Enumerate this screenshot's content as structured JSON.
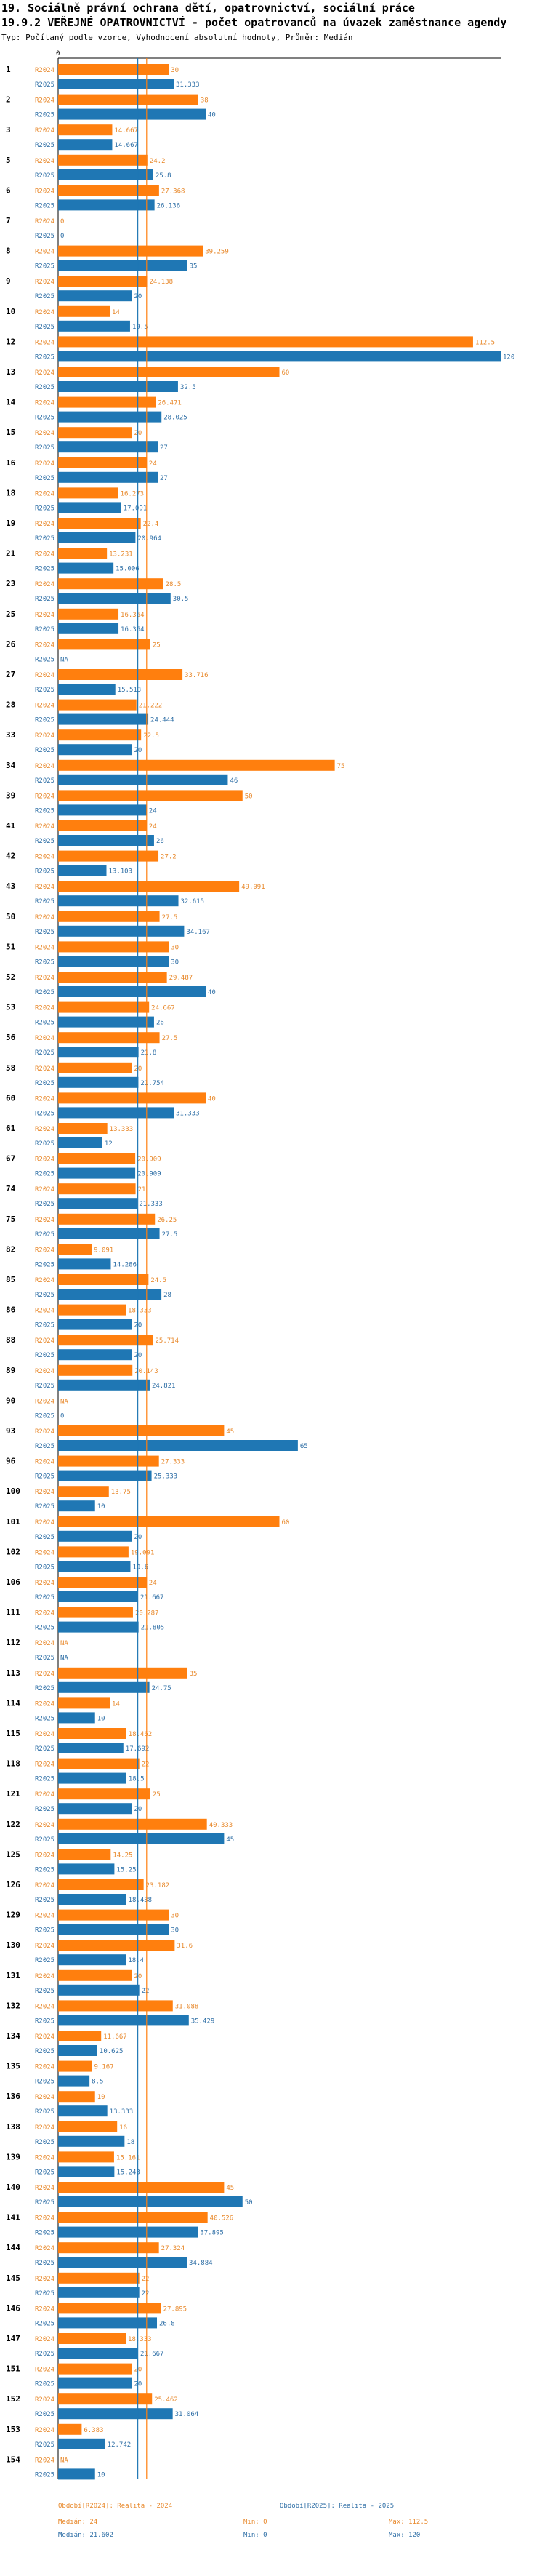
{
  "header": {
    "title1": "19. Sociálně právní ochrana dětí, opatrovnictví, sociální práce",
    "title2": "19.9.2 VEŘEJNÉ OPATROVNICTVÍ - počet opatrovanců na úvazek zaměstnance agendy",
    "subtitle": "Typ: Počítaný podle vzorce, Vyhodnocení absolutní hodnoty, Průměr: Medián"
  },
  "colors": {
    "r2024": "#ff7f0e",
    "r2025": "#1f77b4",
    "r2024_text": "#e8892c",
    "r2025_text": "#2f6fa6"
  },
  "chart_data": {
    "type": "bar",
    "orientation": "horizontal",
    "x_range": [
      0,
      120
    ],
    "series": [
      {
        "key": "r2024",
        "name": "R2024"
      },
      {
        "key": "r2025",
        "name": "R2025"
      }
    ],
    "median_lines": [
      24,
      21.602
    ],
    "rows": [
      {
        "id": "1",
        "r2024": {
          "v": 30,
          "t": "30"
        },
        "r2025": {
          "v": 31.333,
          "t": "31.333"
        }
      },
      {
        "id": "2",
        "r2024": {
          "v": 38,
          "t": "38"
        },
        "r2025": {
          "v": 40,
          "t": "40"
        }
      },
      {
        "id": "3",
        "r2024": {
          "v": 14.667,
          "t": "14.667"
        },
        "r2025": {
          "v": 14.667,
          "t": "14.667"
        }
      },
      {
        "id": "5",
        "r2024": {
          "v": 24.2,
          "t": "24.2"
        },
        "r2025": {
          "v": 25.8,
          "t": "25.8"
        }
      },
      {
        "id": "6",
        "r2024": {
          "v": 27.368,
          "t": "27.368"
        },
        "r2025": {
          "v": 26.136,
          "t": "26.136"
        }
      },
      {
        "id": "7",
        "r2024": {
          "v": 0,
          "t": "0"
        },
        "r2025": {
          "v": 0,
          "t": "0"
        }
      },
      {
        "id": "8",
        "r2024": {
          "v": 39.259,
          "t": "39.259"
        },
        "r2025": {
          "v": 35,
          "t": "35"
        }
      },
      {
        "id": "9",
        "r2024": {
          "v": 24.138,
          "t": "24.138"
        },
        "r2025": {
          "v": 20,
          "t": "20"
        }
      },
      {
        "id": "10",
        "r2024": {
          "v": 14,
          "t": "14"
        },
        "r2025": {
          "v": 19.5,
          "t": "19.5"
        }
      },
      {
        "id": "12",
        "r2024": {
          "v": 112.5,
          "t": "112.5"
        },
        "r2025": {
          "v": 120,
          "t": "120"
        }
      },
      {
        "id": "13",
        "r2024": {
          "v": 60,
          "t": "60"
        },
        "r2025": {
          "v": 32.5,
          "t": "32.5"
        }
      },
      {
        "id": "14",
        "r2024": {
          "v": 26.471,
          "t": "26.471"
        },
        "r2025": {
          "v": 28.025,
          "t": "28.025"
        }
      },
      {
        "id": "15",
        "r2024": {
          "v": 20,
          "t": "20"
        },
        "r2025": {
          "v": 27,
          "t": "27"
        }
      },
      {
        "id": "16",
        "r2024": {
          "v": 24,
          "t": "24"
        },
        "r2025": {
          "v": 27,
          "t": "27"
        }
      },
      {
        "id": "18",
        "r2024": {
          "v": 16.273,
          "t": "16.273"
        },
        "r2025": {
          "v": 17.091,
          "t": "17.091"
        }
      },
      {
        "id": "19",
        "r2024": {
          "v": 22.4,
          "t": "22.4"
        },
        "r2025": {
          "v": 20.964,
          "t": "20.964"
        }
      },
      {
        "id": "21",
        "r2024": {
          "v": 13.231,
          "t": "13.231"
        },
        "r2025": {
          "v": 15.006,
          "t": "15.006"
        }
      },
      {
        "id": "23",
        "r2024": {
          "v": 28.5,
          "t": "28.5"
        },
        "r2025": {
          "v": 30.5,
          "t": "30.5"
        }
      },
      {
        "id": "25",
        "r2024": {
          "v": 16.364,
          "t": "16.364"
        },
        "r2025": {
          "v": 16.364,
          "t": "16.364"
        }
      },
      {
        "id": "26",
        "r2024": {
          "v": 25,
          "t": "25"
        },
        "r2025": {
          "v": 0,
          "t": "NA"
        }
      },
      {
        "id": "27",
        "r2024": {
          "v": 33.716,
          "t": "33.716"
        },
        "r2025": {
          "v": 15.513,
          "t": "15.513"
        }
      },
      {
        "id": "28",
        "r2024": {
          "v": 21.222,
          "t": "21.222"
        },
        "r2025": {
          "v": 24.444,
          "t": "24.444"
        }
      },
      {
        "id": "33",
        "r2024": {
          "v": 22.5,
          "t": "22.5"
        },
        "r2025": {
          "v": 20,
          "t": "20"
        }
      },
      {
        "id": "34",
        "r2024": {
          "v": 75,
          "t": "75"
        },
        "r2025": {
          "v": 46,
          "t": "46"
        }
      },
      {
        "id": "39",
        "r2024": {
          "v": 50,
          "t": "50"
        },
        "r2025": {
          "v": 24,
          "t": "24"
        }
      },
      {
        "id": "41",
        "r2024": {
          "v": 24,
          "t": "24"
        },
        "r2025": {
          "v": 26,
          "t": "26"
        }
      },
      {
        "id": "42",
        "r2024": {
          "v": 27.2,
          "t": "27.2"
        },
        "r2025": {
          "v": 13.103,
          "t": "13.103"
        }
      },
      {
        "id": "43",
        "r2024": {
          "v": 49.091,
          "t": "49.091"
        },
        "r2025": {
          "v": 32.615,
          "t": "32.615"
        }
      },
      {
        "id": "50",
        "r2024": {
          "v": 27.5,
          "t": "27.5"
        },
        "r2025": {
          "v": 34.167,
          "t": "34.167"
        }
      },
      {
        "id": "51",
        "r2024": {
          "v": 30,
          "t": "30"
        },
        "r2025": {
          "v": 30,
          "t": "30"
        }
      },
      {
        "id": "52",
        "r2024": {
          "v": 29.487,
          "t": "29.487"
        },
        "r2025": {
          "v": 40,
          "t": "40"
        }
      },
      {
        "id": "53",
        "r2024": {
          "v": 24.667,
          "t": "24.667"
        },
        "r2025": {
          "v": 26,
          "t": "26"
        }
      },
      {
        "id": "56",
        "r2024": {
          "v": 27.5,
          "t": "27.5"
        },
        "r2025": {
          "v": 21.8,
          "t": "21.8"
        }
      },
      {
        "id": "58",
        "r2024": {
          "v": 20,
          "t": "20"
        },
        "r2025": {
          "v": 21.754,
          "t": "21.754"
        }
      },
      {
        "id": "60",
        "r2024": {
          "v": 40,
          "t": "40"
        },
        "r2025": {
          "v": 31.333,
          "t": "31.333"
        }
      },
      {
        "id": "61",
        "r2024": {
          "v": 13.333,
          "t": "13.333"
        },
        "r2025": {
          "v": 12,
          "t": "12"
        }
      },
      {
        "id": "67",
        "r2024": {
          "v": 20.909,
          "t": "20.909"
        },
        "r2025": {
          "v": 20.909,
          "t": "20.909"
        }
      },
      {
        "id": "74",
        "r2024": {
          "v": 21,
          "t": "21"
        },
        "r2025": {
          "v": 21.333,
          "t": "21.333"
        }
      },
      {
        "id": "75",
        "r2024": {
          "v": 26.25,
          "t": "26.25"
        },
        "r2025": {
          "v": 27.5,
          "t": "27.5"
        }
      },
      {
        "id": "82",
        "r2024": {
          "v": 9.091,
          "t": "9.091"
        },
        "r2025": {
          "v": 14.286,
          "t": "14.286"
        }
      },
      {
        "id": "85",
        "r2024": {
          "v": 24.5,
          "t": "24.5"
        },
        "r2025": {
          "v": 28,
          "t": "28"
        }
      },
      {
        "id": "86",
        "r2024": {
          "v": 18.333,
          "t": "18.333"
        },
        "r2025": {
          "v": 20,
          "t": "20"
        }
      },
      {
        "id": "88",
        "r2024": {
          "v": 25.714,
          "t": "25.714"
        },
        "r2025": {
          "v": 20,
          "t": "20"
        }
      },
      {
        "id": "89",
        "r2024": {
          "v": 20.143,
          "t": "20.143"
        },
        "r2025": {
          "v": 24.821,
          "t": "24.821"
        }
      },
      {
        "id": "90",
        "r2024": {
          "v": 0,
          "t": "NA"
        },
        "r2025": {
          "v": 0,
          "t": "0"
        }
      },
      {
        "id": "93",
        "r2024": {
          "v": 45,
          "t": "45"
        },
        "r2025": {
          "v": 65,
          "t": "65"
        }
      },
      {
        "id": "96",
        "r2024": {
          "v": 27.333,
          "t": "27.333"
        },
        "r2025": {
          "v": 25.333,
          "t": "25.333"
        }
      },
      {
        "id": "100",
        "r2024": {
          "v": 13.75,
          "t": "13.75"
        },
        "r2025": {
          "v": 10,
          "t": "10"
        }
      },
      {
        "id": "101",
        "r2024": {
          "v": 60,
          "t": "60"
        },
        "r2025": {
          "v": 20,
          "t": "20"
        }
      },
      {
        "id": "102",
        "r2024": {
          "v": 19.091,
          "t": "19.091"
        },
        "r2025": {
          "v": 19.6,
          "t": "19.6"
        }
      },
      {
        "id": "106",
        "r2024": {
          "v": 24,
          "t": "24"
        },
        "r2025": {
          "v": 21.667,
          "t": "21.667"
        }
      },
      {
        "id": "111",
        "r2024": {
          "v": 20.287,
          "t": "20.287"
        },
        "r2025": {
          "v": 21.805,
          "t": "21.805"
        }
      },
      {
        "id": "112",
        "r2024": {
          "v": 0,
          "t": "NA"
        },
        "r2025": {
          "v": 0,
          "t": "NA"
        }
      },
      {
        "id": "113",
        "r2024": {
          "v": 35,
          "t": "35"
        },
        "r2025": {
          "v": 24.75,
          "t": "24.75"
        }
      },
      {
        "id": "114",
        "r2024": {
          "v": 14,
          "t": "14"
        },
        "r2025": {
          "v": 10,
          "t": "10"
        }
      },
      {
        "id": "115",
        "r2024": {
          "v": 18.462,
          "t": "18.462"
        },
        "r2025": {
          "v": 17.692,
          "t": "17.692"
        }
      },
      {
        "id": "118",
        "r2024": {
          "v": 22,
          "t": "22"
        },
        "r2025": {
          "v": 18.5,
          "t": "18.5"
        }
      },
      {
        "id": "121",
        "r2024": {
          "v": 25,
          "t": "25"
        },
        "r2025": {
          "v": 20,
          "t": "20"
        }
      },
      {
        "id": "122",
        "r2024": {
          "v": 40.333,
          "t": "40.333"
        },
        "r2025": {
          "v": 45,
          "t": "45"
        }
      },
      {
        "id": "125",
        "r2024": {
          "v": 14.25,
          "t": "14.25"
        },
        "r2025": {
          "v": 15.25,
          "t": "15.25"
        }
      },
      {
        "id": "126",
        "r2024": {
          "v": 23.182,
          "t": "23.182"
        },
        "r2025": {
          "v": 18.438,
          "t": "18.438"
        }
      },
      {
        "id": "129",
        "r2024": {
          "v": 30,
          "t": "30"
        },
        "r2025": {
          "v": 30,
          "t": "30"
        }
      },
      {
        "id": "130",
        "r2024": {
          "v": 31.6,
          "t": "31.6"
        },
        "r2025": {
          "v": 18.4,
          "t": "18.4"
        }
      },
      {
        "id": "131",
        "r2024": {
          "v": 20,
          "t": "20"
        },
        "r2025": {
          "v": 22,
          "t": "22"
        }
      },
      {
        "id": "132",
        "r2024": {
          "v": 31.088,
          "t": "31.088"
        },
        "r2025": {
          "v": 35.429,
          "t": "35.429"
        }
      },
      {
        "id": "134",
        "r2024": {
          "v": 11.667,
          "t": "11.667"
        },
        "r2025": {
          "v": 10.625,
          "t": "10.625"
        }
      },
      {
        "id": "135",
        "r2024": {
          "v": 9.167,
          "t": "9.167"
        },
        "r2025": {
          "v": 8.5,
          "t": "8.5"
        }
      },
      {
        "id": "136",
        "r2024": {
          "v": 10,
          "t": "10"
        },
        "r2025": {
          "v": 13.333,
          "t": "13.333"
        }
      },
      {
        "id": "138",
        "r2024": {
          "v": 16,
          "t": "16"
        },
        "r2025": {
          "v": 18,
          "t": "18"
        }
      },
      {
        "id": "139",
        "r2024": {
          "v": 15.161,
          "t": "15.161"
        },
        "r2025": {
          "v": 15.243,
          "t": "15.243"
        }
      },
      {
        "id": "140",
        "r2024": {
          "v": 45,
          "t": "45"
        },
        "r2025": {
          "v": 50,
          "t": "50"
        }
      },
      {
        "id": "141",
        "r2024": {
          "v": 40.526,
          "t": "40.526"
        },
        "r2025": {
          "v": 37.895,
          "t": "37.895"
        }
      },
      {
        "id": "144",
        "r2024": {
          "v": 27.324,
          "t": "27.324"
        },
        "r2025": {
          "v": 34.884,
          "t": "34.884"
        }
      },
      {
        "id": "145",
        "r2024": {
          "v": 22,
          "t": "22"
        },
        "r2025": {
          "v": 22,
          "t": "22"
        }
      },
      {
        "id": "146",
        "r2024": {
          "v": 27.895,
          "t": "27.895"
        },
        "r2025": {
          "v": 26.8,
          "t": "26.8"
        }
      },
      {
        "id": "147",
        "r2024": {
          "v": 18.333,
          "t": "18.333"
        },
        "r2025": {
          "v": 21.667,
          "t": "21.667"
        }
      },
      {
        "id": "151",
        "r2024": {
          "v": 20,
          "t": "20"
        },
        "r2025": {
          "v": 20,
          "t": "20"
        }
      },
      {
        "id": "152",
        "r2024": {
          "v": 25.462,
          "t": "25.462"
        },
        "r2025": {
          "v": 31.064,
          "t": "31.064"
        }
      },
      {
        "id": "153",
        "r2024": {
          "v": 6.383,
          "t": "6.383"
        },
        "r2025": {
          "v": 12.742,
          "t": "12.742"
        }
      },
      {
        "id": "154",
        "r2024": {
          "v": 0,
          "t": "NA"
        },
        "r2025": {
          "v": 10,
          "t": "10"
        }
      }
    ],
    "footer": {
      "left": [
        "Období[R2024]: Realita - 2024",
        "Medián: 24",
        "Medián: 21.602"
      ],
      "mid_right": "Období[R2025]: Realita - 2025",
      "min": [
        "Min: 0",
        "Min: 0"
      ],
      "max": [
        "Max: 112.5",
        "Max: 120"
      ]
    }
  }
}
